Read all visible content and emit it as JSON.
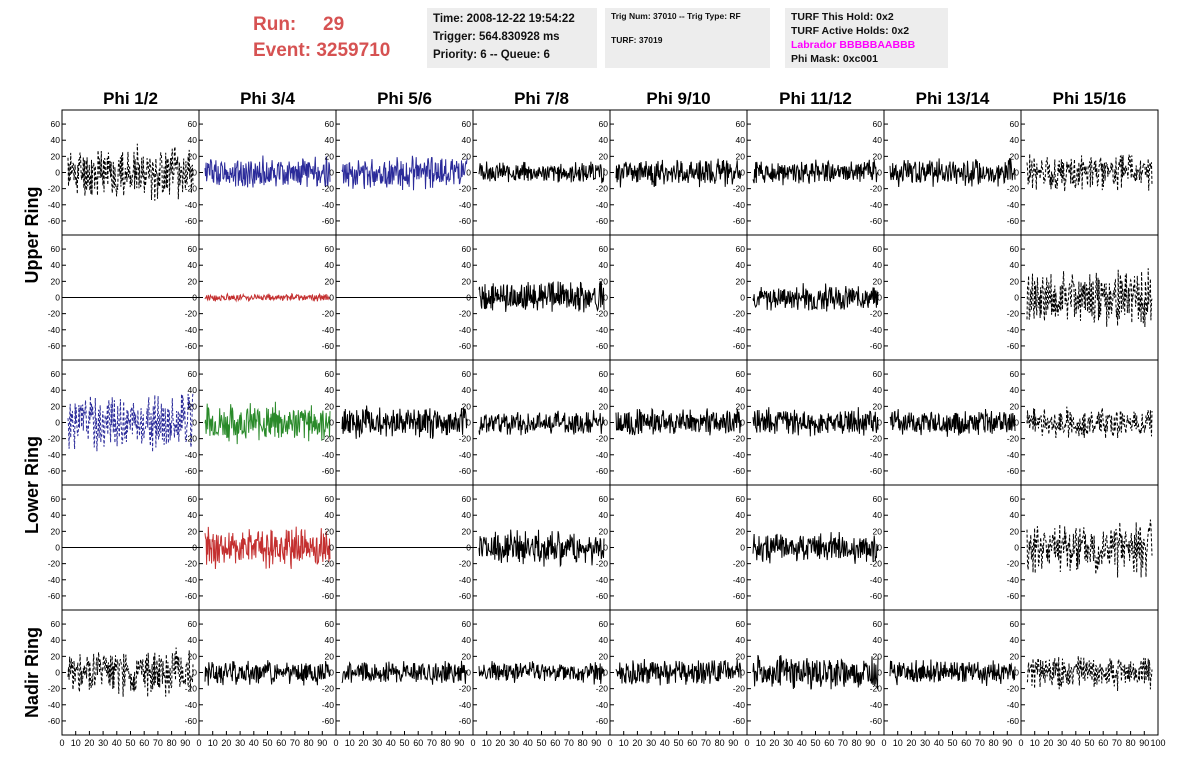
{
  "header": {
    "run_label": "Run:",
    "run_value": "29",
    "event_label": "Event:",
    "event_value": "3259710",
    "time": "Time: 2008-12-22 19:54:22",
    "trigger": "Trigger: 564.830928 ms",
    "priority": "Priority: 6 -- Queue: 6",
    "trig_num": "Trig Num: 37010 -- Trig Type: RF",
    "turf": "TURF: 37019",
    "turf_this_hold": "TURF This Hold: 0x2",
    "turf_active_holds": "TURF Active Holds: 0x2",
    "labrador": "Labrador BBBBBAABBB",
    "phi_mask": "Phi Mask: 0xc001"
  },
  "colors": {
    "run_text": "#d65252",
    "labrador_text": "#ff00ff",
    "black": "#000000",
    "blue": "#2b2b9a",
    "red": "#c43030",
    "green": "#2a8a2a"
  },
  "chart_data": {
    "type": "line",
    "columns": [
      "Phi 1/2",
      "Phi 3/4",
      "Phi 5/6",
      "Phi 7/8",
      "Phi 9/10",
      "Phi 11/12",
      "Phi 13/14",
      "Phi 15/16"
    ],
    "ring_labels": [
      "Upper Ring",
      "Lower Ring",
      "Nadir Ring"
    ],
    "xlim": [
      0,
      100
    ],
    "ylim": [
      -70,
      70
    ],
    "x_ticks": [
      "0",
      "10",
      "20",
      "30",
      "40",
      "50",
      "60",
      "70",
      "80",
      "90",
      "100"
    ],
    "y_ticks": [
      "60",
      "40",
      "20",
      "0",
      "-20",
      "-40",
      "-60"
    ],
    "rows": [
      [
        {
          "color": "black",
          "style": "dashed",
          "amp": 28,
          "seed": 11
        },
        {
          "color": "blue",
          "style": "solid",
          "amp": 17,
          "seed": 12
        },
        {
          "color": "blue",
          "style": "solid",
          "amp": 17,
          "seed": 13
        },
        {
          "color": "black",
          "style": "solid",
          "amp": 11,
          "seed": 14
        },
        {
          "color": "black",
          "style": "solid",
          "amp": 15,
          "seed": 15
        },
        {
          "color": "black",
          "style": "solid",
          "amp": 13,
          "seed": 16
        },
        {
          "color": "black",
          "style": "solid",
          "amp": 15,
          "seed": 17
        },
        {
          "color": "black",
          "style": "dashed",
          "amp": 20,
          "seed": 18
        }
      ],
      [
        {
          "color": "black",
          "style": "flat",
          "amp": 0,
          "seed": 21
        },
        {
          "color": "red",
          "style": "solid",
          "amp": 4,
          "seed": 22
        },
        {
          "color": "black",
          "style": "flat",
          "amp": 0,
          "seed": 23
        },
        {
          "color": "black",
          "style": "solid",
          "amp": 17,
          "seed": 24
        },
        {
          "color": "none",
          "style": "none",
          "amp": 0,
          "seed": 25
        },
        {
          "color": "black",
          "style": "solid",
          "amp": 14,
          "seed": 26
        },
        {
          "color": "none",
          "style": "none",
          "amp": 0,
          "seed": 27
        },
        {
          "color": "black",
          "style": "dashed",
          "amp": 30,
          "seed": 28
        }
      ],
      [
        {
          "color": "blue",
          "style": "dashed",
          "amp": 30,
          "seed": 31
        },
        {
          "color": "green",
          "style": "solid",
          "amp": 21,
          "seed": 32
        },
        {
          "color": "black",
          "style": "solid",
          "amp": 17,
          "seed": 33
        },
        {
          "color": "black",
          "style": "solid",
          "amp": 13,
          "seed": 34
        },
        {
          "color": "black",
          "style": "solid",
          "amp": 15,
          "seed": 35
        },
        {
          "color": "black",
          "style": "solid",
          "amp": 15,
          "seed": 36
        },
        {
          "color": "black",
          "style": "solid",
          "amp": 15,
          "seed": 37
        },
        {
          "color": "black",
          "style": "dashed",
          "amp": 16,
          "seed": 38
        }
      ],
      [
        {
          "color": "black",
          "style": "flat",
          "amp": 0,
          "seed": 41
        },
        {
          "color": "red",
          "style": "solid",
          "amp": 22,
          "seed": 42
        },
        {
          "color": "black",
          "style": "flat",
          "amp": 0,
          "seed": 43
        },
        {
          "color": "black",
          "style": "solid",
          "amp": 19,
          "seed": 44
        },
        {
          "color": "none",
          "style": "none",
          "amp": 0,
          "seed": 45
        },
        {
          "color": "black",
          "style": "solid",
          "amp": 16,
          "seed": 46
        },
        {
          "color": "none",
          "style": "none",
          "amp": 0,
          "seed": 47
        },
        {
          "color": "black",
          "style": "dashed",
          "amp": 30,
          "seed": 48
        }
      ],
      [
        {
          "color": "black",
          "style": "dashed",
          "amp": 25,
          "seed": 51
        },
        {
          "color": "black",
          "style": "solid",
          "amp": 14,
          "seed": 52
        },
        {
          "color": "black",
          "style": "solid",
          "amp": 12,
          "seed": 53
        },
        {
          "color": "black",
          "style": "solid",
          "amp": 12,
          "seed": 54
        },
        {
          "color": "black",
          "style": "solid",
          "amp": 14,
          "seed": 55
        },
        {
          "color": "black",
          "style": "solid",
          "amp": 18,
          "seed": 56
        },
        {
          "color": "black",
          "style": "solid",
          "amp": 13,
          "seed": 57
        },
        {
          "color": "black",
          "style": "dashed",
          "amp": 18,
          "seed": 58
        }
      ]
    ]
  }
}
